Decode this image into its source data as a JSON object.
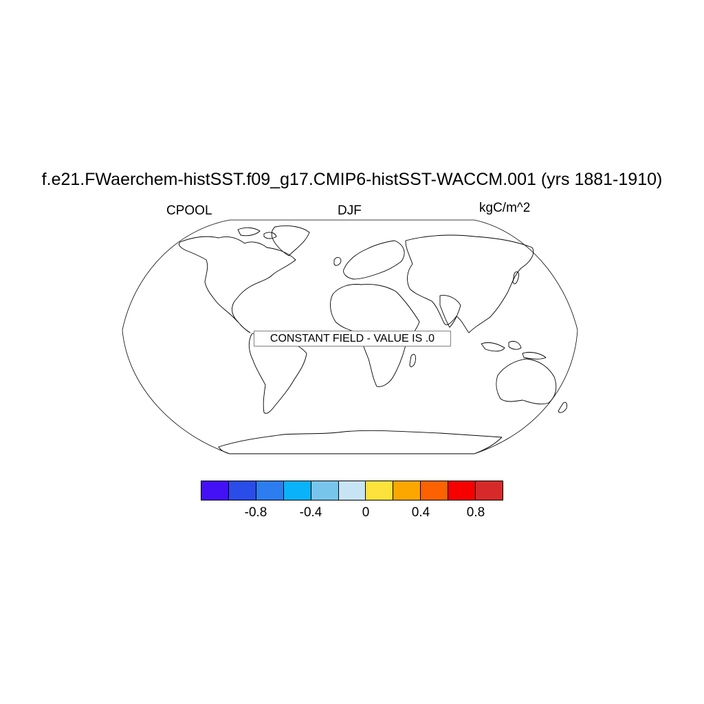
{
  "title": "f.e21.FWaerchem-histSST.f09_g17.CMIP6-histSST-WACCM.001 (yrs 1881-1910)",
  "left_string": "CPOOL",
  "center_string": "DJF",
  "right_string": "kgC/m^2",
  "constant_field_message": "CONSTANT FIELD - VALUE IS .0",
  "projection": "robinson",
  "colorbar": {
    "colors": [
      "#4410f6",
      "#2a4ce8",
      "#2c7df0",
      "#0ab2fa",
      "#78c5ec",
      "#c7e4f5",
      "#fce23a",
      "#fca600",
      "#fc6200",
      "#f60000",
      "#d62a2a"
    ],
    "tick_labels": [
      "-0.8",
      "-0.4",
      "0",
      "0.4",
      "0.8"
    ]
  }
}
